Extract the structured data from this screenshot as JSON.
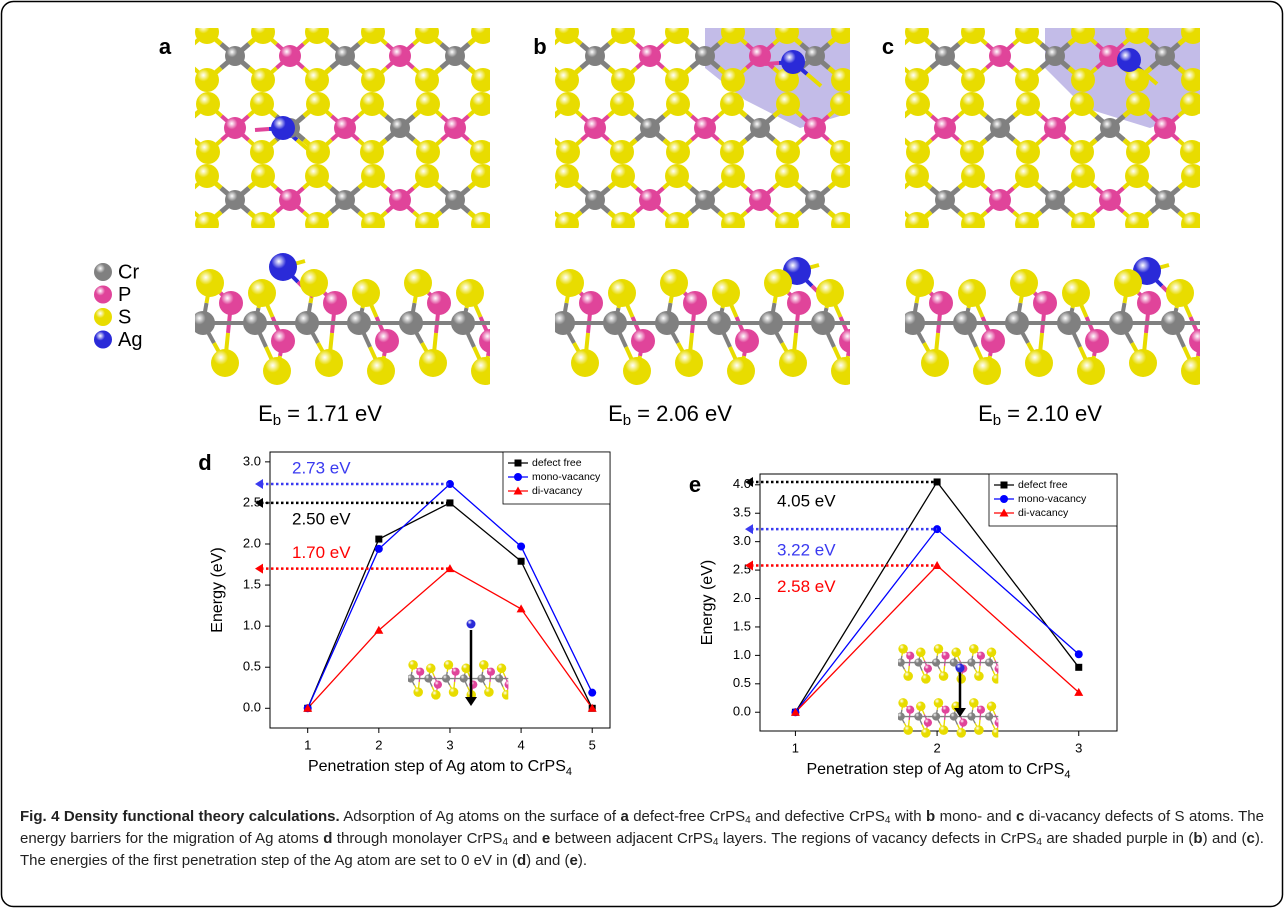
{
  "panels": [
    {
      "label": "a",
      "energy": {
        "symbol": "E",
        "subscript": "b",
        "text": "= 1.71 eV"
      }
    },
    {
      "label": "b",
      "energy": {
        "symbol": "E",
        "subscript": "b",
        "text": "= 2.06 eV"
      }
    },
    {
      "label": "c",
      "energy": {
        "symbol": "E",
        "subscript": "b",
        "text": "= 2.10 eV"
      }
    }
  ],
  "atom_legend": [
    {
      "element": "Cr",
      "color": "#808080"
    },
    {
      "element": "P",
      "color": "#e0449a"
    },
    {
      "element": "S",
      "color": "#e8dc00"
    },
    {
      "element": "Ag",
      "color": "#2a2ad8"
    }
  ],
  "chart_data": [
    {
      "type": "line",
      "panel_label": "d",
      "ylabel": "Energy (eV)",
      "xlabel": {
        "text": "Penetration step of Ag atom to CrPS",
        "subscript": "4"
      },
      "x": [
        1,
        2,
        3,
        4,
        5
      ],
      "xlim": [
        0.47,
        5.25
      ],
      "xticks": [
        1,
        2,
        3,
        4,
        5
      ],
      "ylim": [
        -0.24,
        3.12
      ],
      "yticks": [
        {
          "value": 0,
          "label": "0.0"
        },
        {
          "value": 0.5,
          "label": "0.5"
        },
        {
          "value": 1,
          "label": "1.0"
        },
        {
          "value": 1.5,
          "label": "1.5"
        },
        {
          "value": 2,
          "label": "2.0"
        },
        {
          "value": 2.5,
          "label": "2.5"
        },
        {
          "value": 3,
          "label": "3.0"
        }
      ],
      "legend": "upper right",
      "series": [
        {
          "name": "defect free",
          "color": "#000000",
          "marker": "square",
          "values": [
            0,
            2.06,
            2.5,
            1.79,
            0
          ]
        },
        {
          "name": "mono-vacancy",
          "color": "#0000ff",
          "marker": "circle",
          "values": [
            0,
            1.94,
            2.73,
            1.97,
            0.19
          ]
        },
        {
          "name": "di-vacancy",
          "color": "#ff0000",
          "marker": "triangle",
          "values": [
            0,
            0.95,
            1.7,
            1.21,
            0
          ]
        }
      ],
      "annotations": [
        {
          "text": "2.73 eV",
          "color": "#3a3af0",
          "x": 3,
          "y": 2.73
        },
        {
          "text": "2.50 eV",
          "color": "#000000",
          "x": 3,
          "y": 2.5
        },
        {
          "text": "1.70 eV",
          "color": "#ff0000",
          "x": 3,
          "y": 1.7
        }
      ]
    },
    {
      "type": "line",
      "panel_label": "e",
      "ylabel": "Energy (eV)",
      "xlabel": {
        "text": "Penetration step of Ag atom to CrPS",
        "subscript": "4"
      },
      "x": [
        1,
        2,
        3
      ],
      "xlim": [
        0.75,
        3.27
      ],
      "xticks": [
        1,
        2,
        3
      ],
      "ylim": [
        -0.33,
        4.19
      ],
      "yticks": [
        {
          "value": 0,
          "label": "0.0"
        },
        {
          "value": 0.5,
          "label": "0.5"
        },
        {
          "value": 1,
          "label": "1.0"
        },
        {
          "value": 1.5,
          "label": "1.5"
        },
        {
          "value": 2,
          "label": "2.0"
        },
        {
          "value": 2.5,
          "label": "2.5"
        },
        {
          "value": 3,
          "label": "3.0"
        },
        {
          "value": 3.5,
          "label": "3.5"
        },
        {
          "value": 4,
          "label": "4.0"
        }
      ],
      "legend": "upper right",
      "series": [
        {
          "name": "defect free",
          "color": "#000000",
          "marker": "square",
          "values": [
            0,
            4.05,
            0.79
          ]
        },
        {
          "name": "mono-vacancy",
          "color": "#0000ff",
          "marker": "circle",
          "values": [
            0,
            3.22,
            1.02
          ]
        },
        {
          "name": "di-vacancy",
          "color": "#ff0000",
          "marker": "triangle",
          "values": [
            0,
            2.58,
            0.35
          ]
        }
      ],
      "annotations": [
        {
          "text": "4.05 eV",
          "color": "#000000",
          "x": 2,
          "y": 4.05
        },
        {
          "text": "3.22 eV",
          "color": "#3a3af0",
          "x": 2,
          "y": 3.22
        },
        {
          "text": "2.58 eV",
          "color": "#ff0000",
          "x": 2,
          "y": 2.58
        }
      ]
    }
  ],
  "caption": {
    "runs": [
      {
        "text": "Fig. 4 Density functional theory calculations.",
        "style": "bold"
      },
      {
        "text": " Adsorption of Ag atoms on the surface of "
      },
      {
        "text": "a",
        "style": "bold"
      },
      {
        "text": " defect-free CrPS"
      },
      {
        "text": "4",
        "style": "sub"
      },
      {
        "text": " and defective CrPS"
      },
      {
        "text": "4",
        "style": "sub"
      },
      {
        "text": " with "
      },
      {
        "text": "b",
        "style": "bold"
      },
      {
        "text": " mono- and "
      },
      {
        "text": "c",
        "style": "bold"
      },
      {
        "text": " di-vacancy defects of S atoms. The energy barriers for the migration of Ag atoms "
      },
      {
        "text": "d",
        "style": "bold"
      },
      {
        "text": " through monolayer CrPS"
      },
      {
        "text": "4",
        "style": "sub"
      },
      {
        "text": " and "
      },
      {
        "text": "e",
        "style": "bold"
      },
      {
        "text": " between adjacent CrPS"
      },
      {
        "text": "4",
        "style": "sub"
      },
      {
        "text": " layers. The regions of vacancy defects in CrPS"
      },
      {
        "text": "4",
        "style": "sub"
      },
      {
        "text": " are shaded purple in ("
      },
      {
        "text": "b",
        "style": "bold"
      },
      {
        "text": ") and ("
      },
      {
        "text": "c",
        "style": "bold"
      },
      {
        "text": "). The energies of the first penetration step of the Ag atom are set to 0 eV in ("
      },
      {
        "text": "d",
        "style": "bold"
      },
      {
        "text": ") and ("
      },
      {
        "text": "e",
        "style": "bold"
      },
      {
        "text": ")."
      }
    ]
  }
}
